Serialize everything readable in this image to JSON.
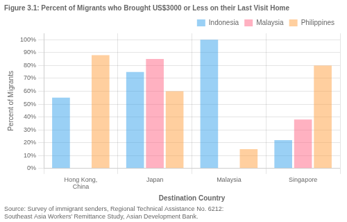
{
  "chart_data": {
    "type": "bar",
    "title": "Figure 3.1: Percent of Migrants who Brought US$3000 or Less on their Last Visit Home",
    "annotations": [
      "Source: Survey of immigrant senders, Regional Technical Assistance No. 6212:\nSoutheast Asia Workers' Remittance Study, Asian Development Bank."
    ],
    "x_label": "Destination Country",
    "y_label": "Percent of Migrants",
    "categories": [
      "Hong Kong,\nChina",
      "Japan",
      "Malaysia",
      "Singapore"
    ],
    "series": [
      {
        "name": "Indonesia",
        "values": [
          55,
          75,
          100,
          22
        ]
      },
      {
        "name": "Malaysia",
        "values": [
          null,
          85,
          null,
          38
        ]
      },
      {
        "name": "Philippines",
        "values": [
          88,
          60,
          15,
          80
        ]
      }
    ],
    "ylim": [
      0,
      105
    ],
    "yticks": [
      {
        "value": 0,
        "label": "0%"
      },
      {
        "value": 10,
        "label": "10%"
      },
      {
        "value": 20,
        "label": "20%"
      },
      {
        "value": 30,
        "label": "30%"
      },
      {
        "value": 40,
        "label": "40%"
      },
      {
        "value": 50,
        "label": "50%"
      },
      {
        "value": 60,
        "label": "60%"
      },
      {
        "value": 70,
        "label": "70%"
      },
      {
        "value": 80,
        "label": "80%"
      },
      {
        "value": 90,
        "label": "90%"
      },
      {
        "value": 100,
        "label": "100%"
      }
    ],
    "grid": true,
    "legend": "upper right"
  }
}
